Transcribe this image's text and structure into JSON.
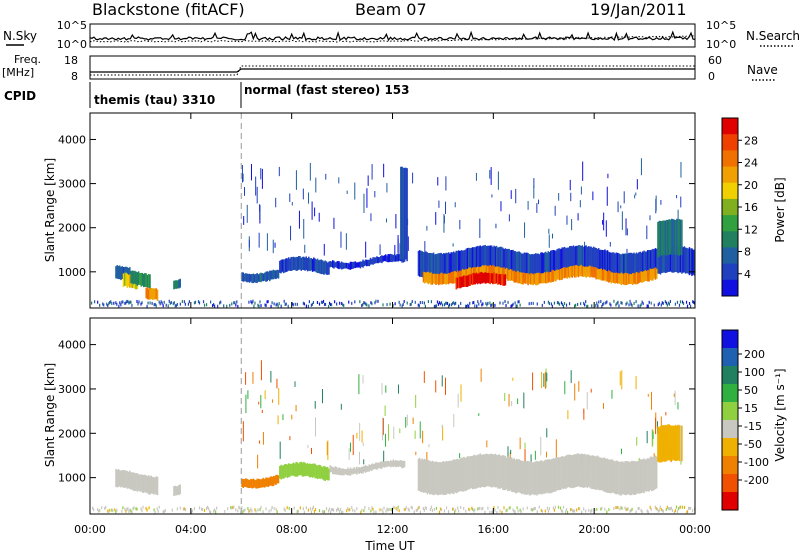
{
  "header": {
    "station": "Blackstone (fitACF)",
    "beam": "Beam 07",
    "date": "19/Jan/2011"
  },
  "summary": {
    "nsky_label": "N.Sky",
    "nsearch_label": "N.Search",
    "nsky_ticks": [
      "10^5",
      "10^0"
    ],
    "nsearch_ticks": [
      "10^5",
      "10^0"
    ],
    "freq_label": "Freq.",
    "freq_unit": "[MHz]",
    "freq_ticks": [
      "18",
      "8"
    ],
    "nave_label": "Nave",
    "nave_ticks": [
      "60",
      "0"
    ],
    "cpid_label": "CPID",
    "cpid_modes": [
      {
        "label": "themis (tau) 3310",
        "start": 0,
        "end": 6
      },
      {
        "label": "normal (fast stereo) 153",
        "start": 6,
        "end": 24
      }
    ]
  },
  "chart_data": [
    {
      "type": "heatmap",
      "name": "power-panel",
      "ylabel": "Slant Range [km]",
      "xlim": [
        0,
        24
      ],
      "ylim": [
        180,
        4600
      ],
      "yticks": [
        1000,
        2000,
        3000,
        4000
      ],
      "xticks": [
        "00:00",
        "04:00",
        "08:00",
        "12:00",
        "16:00",
        "20:00",
        "00:00"
      ],
      "colorbar": {
        "label": "Power [dB]",
        "ticks": [
          "4",
          "8",
          "12",
          "16",
          "20",
          "24",
          "28"
        ],
        "colors": [
          "#1010e0",
          "#2040c0",
          "#2060a0",
          "#208060",
          "#30a040",
          "#80b020",
          "#f0d000",
          "#f0a000",
          "#f07000",
          "#f04000",
          "#e00000"
        ]
      },
      "bands": [
        {
          "t0": 1.0,
          "t1": 1.6,
          "r0": 750,
          "r1": 1050,
          "v": 8
        },
        {
          "t0": 1.3,
          "t1": 1.9,
          "r0": 600,
          "r1": 900,
          "v": 18
        },
        {
          "t0": 1.6,
          "t1": 2.4,
          "r0": 700,
          "r1": 1000,
          "v": 12
        },
        {
          "t0": 2.2,
          "t1": 2.7,
          "r0": 450,
          "r1": 700,
          "v": 22
        },
        {
          "t0": 3.3,
          "t1": 3.6,
          "r0": 650,
          "r1": 850,
          "v": 10
        },
        {
          "t0": 6.0,
          "t1": 7.5,
          "r0": 850,
          "r1": 1050,
          "v": 8
        },
        {
          "t0": 7.5,
          "t1": 9.5,
          "r0": 950,
          "r1": 1250,
          "v": 6
        },
        {
          "t0": 9.5,
          "t1": 12.5,
          "r0": 1150,
          "r1": 1300,
          "v": 5
        },
        {
          "t0": 12.3,
          "t1": 12.6,
          "r0": 1200,
          "r1": 3300,
          "v": 6
        },
        {
          "t0": 13.0,
          "t1": 24.0,
          "r0": 900,
          "r1": 1500,
          "v": 6
        },
        {
          "t0": 13.2,
          "t1": 22.5,
          "r0": 800,
          "r1": 1050,
          "v": 22
        },
        {
          "t0": 14.5,
          "t1": 16.5,
          "r0": 650,
          "r1": 900,
          "v": 28
        },
        {
          "t0": 22.5,
          "t1": 23.5,
          "r0": 1300,
          "r1": 2100,
          "v": 10
        }
      ]
    },
    {
      "type": "heatmap",
      "name": "velocity-panel",
      "ylabel": "Slant Range [km]",
      "xlabel": "Time UT",
      "xlim": [
        0,
        24
      ],
      "ylim": [
        180,
        4600
      ],
      "yticks": [
        1000,
        2000,
        3000,
        4000
      ],
      "xticks": [
        "00:00",
        "04:00",
        "08:00",
        "12:00",
        "16:00",
        "20:00",
        "00:00"
      ],
      "colorbar": {
        "label": "Velocity [m s⁻¹]",
        "ticks": [
          "200",
          "100",
          "50",
          "15",
          "-15",
          "-50",
          "-100",
          "-200"
        ],
        "colors": [
          "#1010e0",
          "#2060b0",
          "#208060",
          "#30b040",
          "#90d040",
          "#c8c8c0",
          "#f0b000",
          "#f08000",
          "#f05000",
          "#e00000"
        ]
      },
      "bands": [
        {
          "t0": 1.0,
          "t1": 2.7,
          "r0": 700,
          "r1": 1100,
          "v": 0
        },
        {
          "t0": 3.3,
          "t1": 3.6,
          "r0": 650,
          "r1": 850,
          "v": 0
        },
        {
          "t0": 6.0,
          "t1": 7.5,
          "r0": 850,
          "r1": 1050,
          "v": -60
        },
        {
          "t0": 7.5,
          "t1": 9.5,
          "r0": 950,
          "r1": 1250,
          "v": 40
        },
        {
          "t0": 9.5,
          "t1": 12.5,
          "r0": 1150,
          "r1": 1300,
          "v": 0
        },
        {
          "t0": 13.0,
          "t1": 22.5,
          "r0": 700,
          "r1": 1450,
          "v": 0
        },
        {
          "t0": 22.5,
          "t1": 23.5,
          "r0": 1300,
          "r1": 2100,
          "v": -20
        }
      ]
    }
  ]
}
